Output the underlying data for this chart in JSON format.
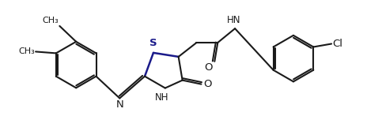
{
  "bg_color": "#ffffff",
  "line_color": "#1a1a1a",
  "S_color": "#1a1a8a",
  "lw": 1.5,
  "dbg": 0.025,
  "fs": 8.5,
  "fig_w": 4.83,
  "fig_h": 1.71,
  "xlim": [
    0,
    4.83
  ],
  "ylim": [
    0,
    1.71
  ]
}
